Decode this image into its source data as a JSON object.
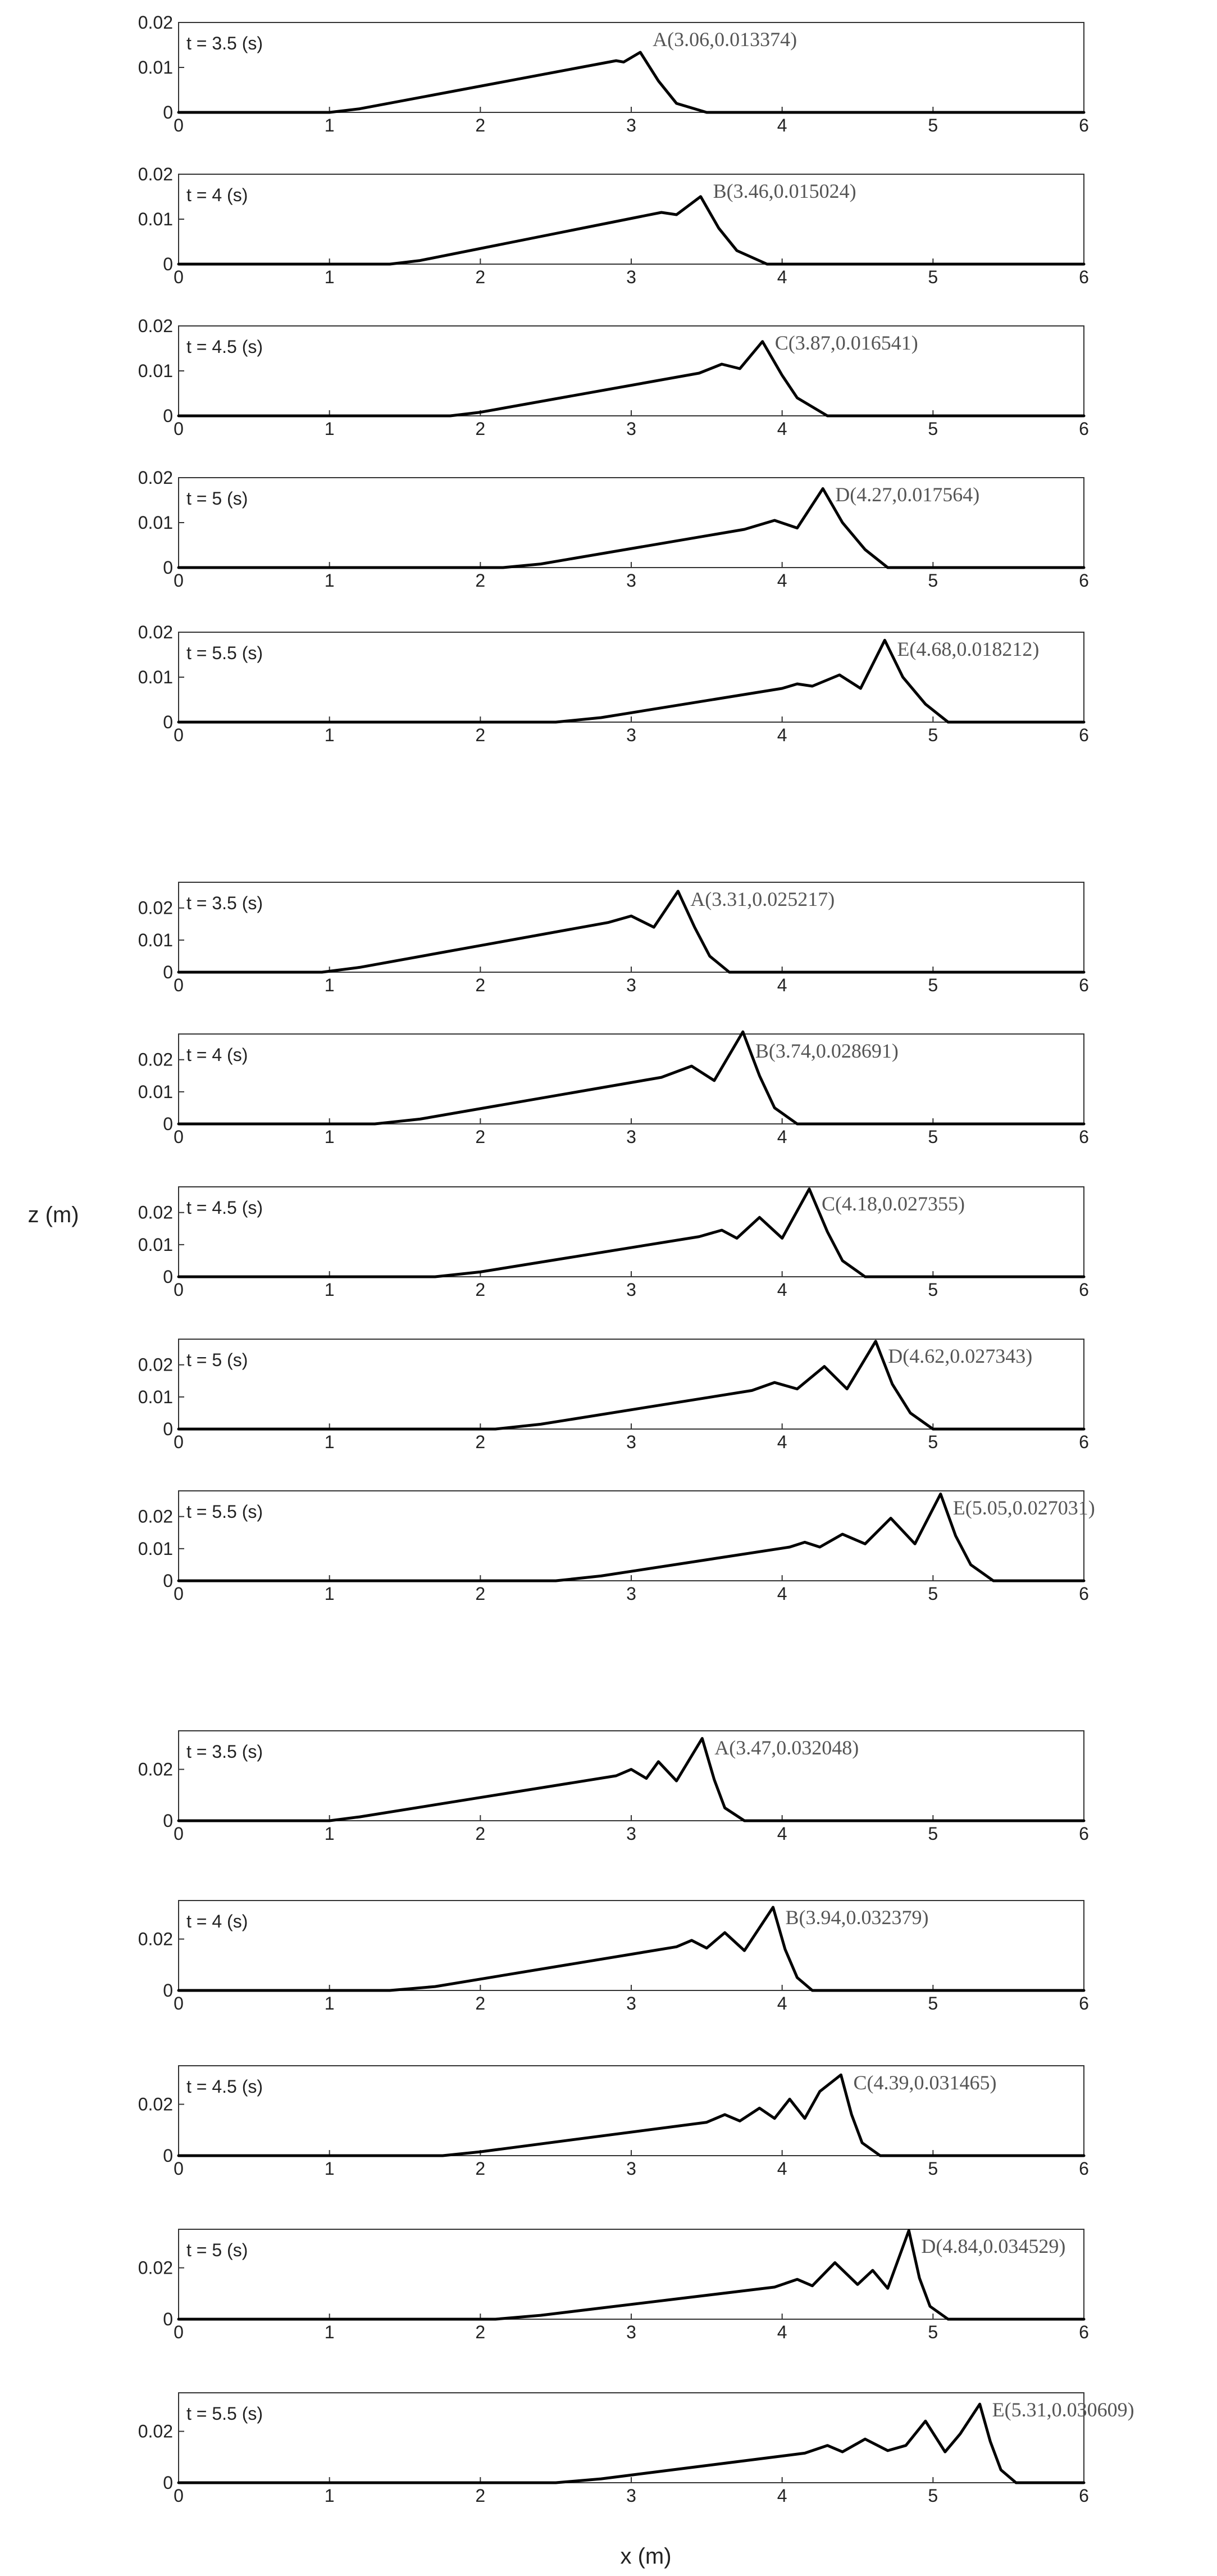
{
  "figure": {
    "ylabel": "z (m)",
    "xlabel": "x (m)"
  },
  "chart_data": [
    {
      "type": "line",
      "group": 1,
      "panel_label": "t = 3.5 (s)",
      "annotation": "A(3.06,0.013374)",
      "peak": {
        "x": 3.06,
        "y": 0.013374
      },
      "xlim": [
        0,
        6
      ],
      "ylim": [
        0,
        0.02
      ],
      "xticks": [
        0,
        1,
        2,
        3,
        4,
        5,
        6
      ],
      "yticks": [
        0,
        0.01,
        0.02
      ],
      "grid": false,
      "x": [
        0,
        1.0,
        1.2,
        2.9,
        2.95,
        3.06,
        3.18,
        3.3,
        3.5,
        6
      ],
      "y": [
        0,
        0,
        0.0008,
        0.0115,
        0.0112,
        0.013374,
        0.007,
        0.002,
        0,
        0
      ]
    },
    {
      "type": "line",
      "group": 1,
      "panel_label": "t = 4 (s)",
      "annotation": "B(3.46,0.015024)",
      "peak": {
        "x": 3.46,
        "y": 0.015024
      },
      "xlim": [
        0,
        6
      ],
      "ylim": [
        0,
        0.02
      ],
      "xticks": [
        0,
        1,
        2,
        3,
        4,
        5,
        6
      ],
      "yticks": [
        0,
        0.01,
        0.02
      ],
      "grid": false,
      "x": [
        0,
        1.4,
        1.6,
        3.05,
        3.2,
        3.3,
        3.46,
        3.58,
        3.7,
        3.9,
        6
      ],
      "y": [
        0,
        0,
        0.0008,
        0.0105,
        0.0115,
        0.011,
        0.015024,
        0.008,
        0.003,
        0,
        0
      ]
    },
    {
      "type": "line",
      "group": 1,
      "panel_label": "t = 4.5 (s)",
      "annotation": "C(3.87,0.016541)",
      "peak": {
        "x": 3.87,
        "y": 0.016541
      },
      "xlim": [
        0,
        6
      ],
      "ylim": [
        0,
        0.02
      ],
      "xticks": [
        0,
        1,
        2,
        3,
        4,
        5,
        6
      ],
      "yticks": [
        0,
        0.01,
        0.02
      ],
      "grid": false,
      "x": [
        0,
        1.8,
        2.0,
        3.45,
        3.6,
        3.72,
        3.87,
        4.0,
        4.1,
        4.3,
        6
      ],
      "y": [
        0,
        0,
        0.0008,
        0.0095,
        0.0115,
        0.0105,
        0.016541,
        0.009,
        0.004,
        0,
        0
      ]
    },
    {
      "type": "line",
      "group": 1,
      "panel_label": "t = 5 (s)",
      "annotation": "D(4.27,0.017564)",
      "peak": {
        "x": 4.27,
        "y": 0.017564
      },
      "xlim": [
        0,
        6
      ],
      "ylim": [
        0,
        0.02
      ],
      "xticks": [
        0,
        1,
        2,
        3,
        4,
        5,
        6
      ],
      "yticks": [
        0,
        0.01,
        0.02
      ],
      "grid": false,
      "x": [
        0,
        2.15,
        2.4,
        3.75,
        3.95,
        4.1,
        4.27,
        4.4,
        4.55,
        4.7,
        6
      ],
      "y": [
        0,
        0,
        0.0008,
        0.0085,
        0.0105,
        0.0088,
        0.017564,
        0.01,
        0.004,
        0,
        0
      ]
    },
    {
      "type": "line",
      "group": 1,
      "panel_label": "t = 5.5 (s)",
      "annotation": "E(4.68,0.018212)",
      "peak": {
        "x": 4.68,
        "y": 0.018212
      },
      "xlim": [
        0,
        6
      ],
      "ylim": [
        0,
        0.02
      ],
      "xticks": [
        0,
        1,
        2,
        3,
        4,
        5,
        6
      ],
      "yticks": [
        0,
        0.01,
        0.02
      ],
      "grid": false,
      "x": [
        0,
        2.5,
        2.8,
        4.0,
        4.1,
        4.2,
        4.38,
        4.52,
        4.68,
        4.8,
        4.95,
        5.1,
        6
      ],
      "y": [
        0,
        0,
        0.001,
        0.0075,
        0.0085,
        0.008,
        0.0105,
        0.0075,
        0.018212,
        0.01,
        0.004,
        0,
        0
      ]
    },
    {
      "type": "line",
      "group": 2,
      "panel_label": "t = 3.5 (s)",
      "annotation": "A(3.31,0.025217)",
      "peak": {
        "x": 3.31,
        "y": 0.025217
      },
      "xlim": [
        0,
        6
      ],
      "ylim": [
        0,
        0.028
      ],
      "xticks": [
        0,
        1,
        2,
        3,
        4,
        5,
        6
      ],
      "yticks": [
        0,
        0.01,
        0.02
      ],
      "grid": false,
      "x": [
        0,
        0.95,
        1.2,
        2.85,
        3.0,
        3.15,
        3.31,
        3.42,
        3.52,
        3.65,
        6
      ],
      "y": [
        0,
        0,
        0.0015,
        0.0155,
        0.0175,
        0.014,
        0.025217,
        0.014,
        0.005,
        0,
        0
      ]
    },
    {
      "type": "line",
      "group": 2,
      "panel_label": "t = 4 (s)",
      "annotation": "B(3.74,0.028691)",
      "peak": {
        "x": 3.74,
        "y": 0.028691
      },
      "xlim": [
        0,
        6
      ],
      "ylim": [
        0,
        0.028
      ],
      "xticks": [
        0,
        1,
        2,
        3,
        4,
        5,
        6
      ],
      "yticks": [
        0,
        0.01,
        0.02
      ],
      "grid": false,
      "x": [
        0,
        1.3,
        1.6,
        3.2,
        3.4,
        3.55,
        3.74,
        3.85,
        3.95,
        4.1,
        6
      ],
      "y": [
        0,
        0,
        0.0015,
        0.0145,
        0.018,
        0.0135,
        0.028691,
        0.015,
        0.005,
        0,
        0
      ]
    },
    {
      "type": "line",
      "group": 2,
      "panel_label": "t = 4.5 (s)",
      "annotation": "C(4.18,0.027355)",
      "peak": {
        "x": 4.18,
        "y": 0.027355
      },
      "xlim": [
        0,
        6
      ],
      "ylim": [
        0,
        0.028
      ],
      "xticks": [
        0,
        1,
        2,
        3,
        4,
        5,
        6
      ],
      "yticks": [
        0,
        0.01,
        0.02
      ],
      "grid": false,
      "x": [
        0,
        1.7,
        2.0,
        3.45,
        3.6,
        3.7,
        3.85,
        4.0,
        4.18,
        4.3,
        4.4,
        4.55,
        6
      ],
      "y": [
        0,
        0,
        0.0015,
        0.0125,
        0.0145,
        0.012,
        0.0185,
        0.012,
        0.027355,
        0.014,
        0.005,
        0,
        0
      ]
    },
    {
      "type": "line",
      "group": 2,
      "panel_label": "t = 5 (s)",
      "annotation": "D(4.62,0.027343)",
      "peak": {
        "x": 4.62,
        "y": 0.027343
      },
      "xlim": [
        0,
        6
      ],
      "ylim": [
        0,
        0.028
      ],
      "xticks": [
        0,
        1,
        2,
        3,
        4,
        5,
        6
      ],
      "yticks": [
        0,
        0.01,
        0.02
      ],
      "grid": false,
      "x": [
        0,
        2.1,
        2.4,
        3.8,
        3.95,
        4.1,
        4.28,
        4.43,
        4.62,
        4.73,
        4.85,
        5.0,
        6
      ],
      "y": [
        0,
        0,
        0.0015,
        0.012,
        0.0145,
        0.0125,
        0.0195,
        0.0125,
        0.027343,
        0.014,
        0.005,
        0,
        0
      ]
    },
    {
      "type": "line",
      "group": 2,
      "panel_label": "t = 5.5 (s)",
      "annotation": "E(5.05,0.027031)",
      "peak": {
        "x": 5.05,
        "y": 0.027031
      },
      "xlim": [
        0,
        6
      ],
      "ylim": [
        0,
        0.028
      ],
      "xticks": [
        0,
        1,
        2,
        3,
        4,
        5,
        6
      ],
      "yticks": [
        0,
        0.01,
        0.02
      ],
      "grid": false,
      "x": [
        0,
        2.5,
        2.8,
        4.05,
        4.15,
        4.25,
        4.4,
        4.55,
        4.72,
        4.88,
        5.05,
        5.15,
        5.25,
        5.4,
        6
      ],
      "y": [
        0,
        0,
        0.0015,
        0.0105,
        0.012,
        0.0105,
        0.0145,
        0.0115,
        0.0195,
        0.0115,
        0.027031,
        0.014,
        0.005,
        0,
        0
      ]
    },
    {
      "type": "line",
      "group": 3,
      "panel_label": "t = 3.5 (s)",
      "annotation": "A(3.47,0.032048)",
      "peak": {
        "x": 3.47,
        "y": 0.032048
      },
      "xlim": [
        0,
        6
      ],
      "ylim": [
        0,
        0.035
      ],
      "xticks": [
        0,
        1,
        2,
        3,
        4,
        5,
        6
      ],
      "yticks": [
        0,
        0.02
      ],
      "grid": false,
      "x": [
        0,
        1.0,
        1.2,
        2.9,
        3.0,
        3.1,
        3.18,
        3.3,
        3.47,
        3.55,
        3.62,
        3.75,
        6
      ],
      "y": [
        0,
        0,
        0.0015,
        0.0175,
        0.02,
        0.0165,
        0.023,
        0.0155,
        0.032048,
        0.016,
        0.005,
        0,
        0
      ]
    },
    {
      "type": "line",
      "group": 3,
      "panel_label": "t = 4 (s)",
      "annotation": "B(3.94,0.032379)",
      "peak": {
        "x": 3.94,
        "y": 0.032379
      },
      "xlim": [
        0,
        6
      ],
      "ylim": [
        0,
        0.035
      ],
      "xticks": [
        0,
        1,
        2,
        3,
        4,
        5,
        6
      ],
      "yticks": [
        0,
        0.02
      ],
      "grid": false,
      "x": [
        0,
        1.4,
        1.7,
        3.3,
        3.4,
        3.5,
        3.62,
        3.75,
        3.94,
        4.02,
        4.1,
        4.2,
        6
      ],
      "y": [
        0,
        0,
        0.0015,
        0.017,
        0.0195,
        0.0165,
        0.0225,
        0.0155,
        0.032379,
        0.016,
        0.005,
        0,
        0
      ]
    },
    {
      "type": "line",
      "group": 3,
      "panel_label": "t = 4.5 (s)",
      "annotation": "C(4.39,0.031465)",
      "peak": {
        "x": 4.39,
        "y": 0.031465
      },
      "xlim": [
        0,
        6
      ],
      "ylim": [
        0,
        0.035
      ],
      "xticks": [
        0,
        1,
        2,
        3,
        4,
        5,
        6
      ],
      "yticks": [
        0,
        0.02
      ],
      "grid": false,
      "x": [
        0,
        1.75,
        2.0,
        3.5,
        3.62,
        3.72,
        3.85,
        3.95,
        4.05,
        4.15,
        4.25,
        4.39,
        4.46,
        4.53,
        4.65,
        6
      ],
      "y": [
        0,
        0,
        0.0015,
        0.013,
        0.016,
        0.0135,
        0.0185,
        0.0145,
        0.022,
        0.0145,
        0.025,
        0.031465,
        0.016,
        0.005,
        0,
        0
      ]
    },
    {
      "type": "line",
      "group": 3,
      "panel_label": "t = 5 (s)",
      "annotation": "D(4.84,0.034529)",
      "peak": {
        "x": 4.84,
        "y": 0.034529
      },
      "xlim": [
        0,
        6
      ],
      "ylim": [
        0,
        0.035
      ],
      "xticks": [
        0,
        1,
        2,
        3,
        4,
        5,
        6
      ],
      "yticks": [
        0,
        0.02
      ],
      "grid": false,
      "x": [
        0,
        2.1,
        2.4,
        3.95,
        4.1,
        4.2,
        4.35,
        4.5,
        4.6,
        4.7,
        4.84,
        4.91,
        4.98,
        5.1,
        6
      ],
      "y": [
        0,
        0,
        0.0015,
        0.0125,
        0.0155,
        0.013,
        0.022,
        0.0135,
        0.019,
        0.012,
        0.034529,
        0.016,
        0.005,
        0,
        0
      ]
    },
    {
      "type": "line",
      "group": 3,
      "panel_label": "t = 5.5 (s)",
      "annotation": "E(5.31,0.030609)",
      "peak": {
        "x": 5.31,
        "y": 0.030609
      },
      "xlim": [
        0,
        6
      ],
      "ylim": [
        0,
        0.035
      ],
      "xticks": [
        0,
        1,
        2,
        3,
        4,
        5,
        6
      ],
      "yticks": [
        0,
        0.02
      ],
      "grid": false,
      "x": [
        0,
        2.5,
        2.8,
        4.15,
        4.3,
        4.4,
        4.55,
        4.7,
        4.82,
        4.95,
        5.08,
        5.18,
        5.31,
        5.38,
        5.45,
        5.55,
        6
      ],
      "y": [
        0,
        0,
        0.0015,
        0.0115,
        0.0145,
        0.012,
        0.017,
        0.0125,
        0.0145,
        0.024,
        0.012,
        0.019,
        0.030609,
        0.016,
        0.005,
        0,
        0
      ]
    }
  ]
}
